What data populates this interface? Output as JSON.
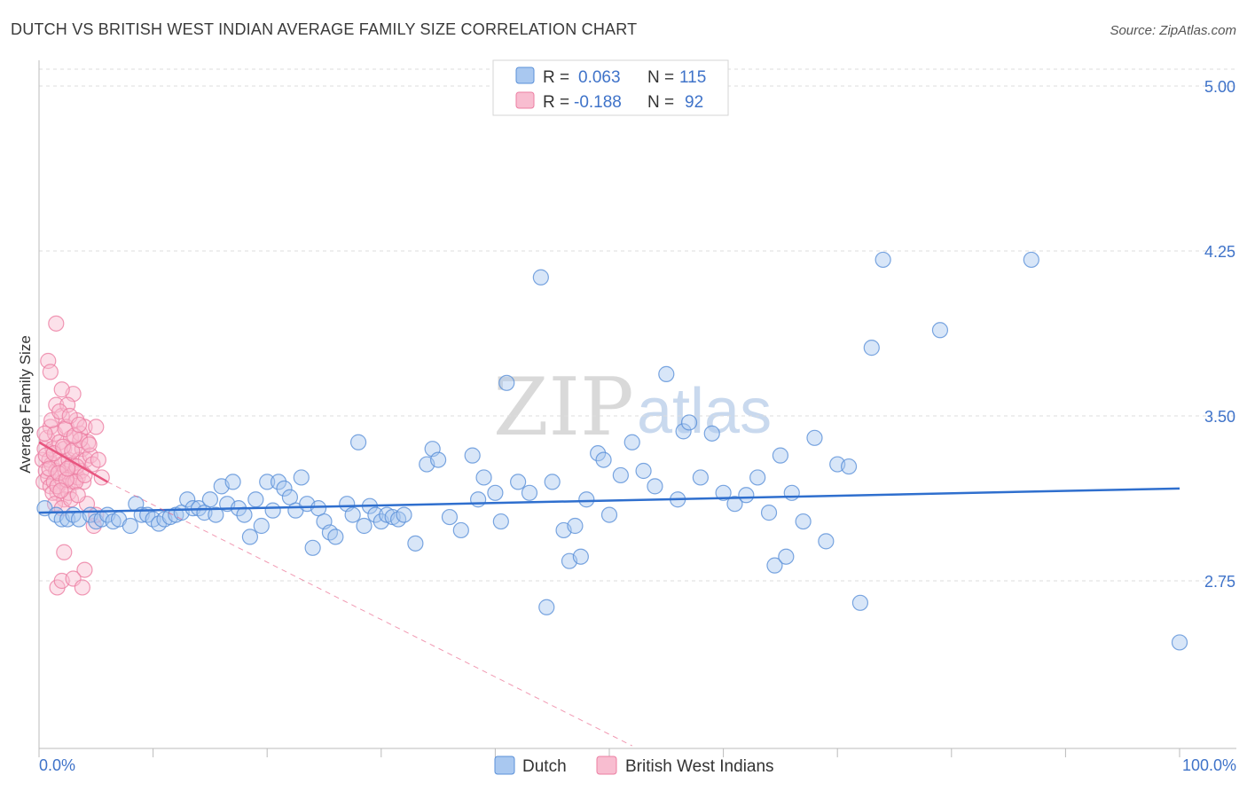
{
  "chart_data": {
    "type": "scatter",
    "title": "DUTCH VS BRITISH WEST INDIAN AVERAGE FAMILY SIZE CORRELATION CHART",
    "source": "Source: ZipAtlas.com",
    "ylabel": "Average Family Size",
    "xlabel": "",
    "x_range": [
      0,
      100
    ],
    "y_range": [
      2.0,
      5.1
    ],
    "x_tick_labels": [
      "0.0%",
      "100.0%"
    ],
    "y_ticks": [
      5.0,
      4.25,
      3.5,
      2.75
    ],
    "y_tick_labels": [
      "5.00",
      "4.25",
      "3.50",
      "2.75"
    ],
    "watermark": {
      "zip": "ZIP",
      "atlas": "atlas"
    },
    "legend_stats": [
      {
        "r_label": "R = ",
        "r_value": "0.063",
        "n_label": "N = ",
        "n_value": "115"
      },
      {
        "r_label": "R = ",
        "r_value": "-0.188",
        "n_label": "N = ",
        "n_value": "92"
      }
    ],
    "colors": {
      "dutch_fill": "#a9c8f0",
      "dutch_stroke": "#5a90d8",
      "dutch_line": "#2f6fce",
      "bwi_fill": "#f8bdd0",
      "bwi_stroke": "#ec7ea2",
      "bwi_line": "#e8557f",
      "grid": "#dddddd",
      "axis": "#bbbbbb"
    },
    "series": [
      {
        "name": "Dutch",
        "trend": {
          "x": [
            0,
            100
          ],
          "y": [
            3.06,
            3.17
          ],
          "dashed_extension": false
        },
        "points": [
          [
            0.5,
            3.08
          ],
          [
            1.5,
            3.05
          ],
          [
            2,
            3.03
          ],
          [
            2.5,
            3.03
          ],
          [
            3,
            3.05
          ],
          [
            3.5,
            3.03
          ],
          [
            4.5,
            3.05
          ],
          [
            5,
            3.02
          ],
          [
            5.5,
            3.03
          ],
          [
            6,
            3.05
          ],
          [
            6.5,
            3.02
          ],
          [
            7,
            3.03
          ],
          [
            8,
            3.0
          ],
          [
            8.5,
            3.1
          ],
          [
            9,
            3.05
          ],
          [
            9.5,
            3.05
          ],
          [
            10,
            3.03
          ],
          [
            10.5,
            3.01
          ],
          [
            11,
            3.03
          ],
          [
            11.5,
            3.04
          ],
          [
            12,
            3.05
          ],
          [
            12.5,
            3.06
          ],
          [
            13,
            3.12
          ],
          [
            13.5,
            3.08
          ],
          [
            14,
            3.08
          ],
          [
            14.5,
            3.06
          ],
          [
            15,
            3.12
          ],
          [
            15.5,
            3.05
          ],
          [
            16,
            3.18
          ],
          [
            16.5,
            3.1
          ],
          [
            17,
            3.2
          ],
          [
            17.5,
            3.08
          ],
          [
            18,
            3.05
          ],
          [
            18.5,
            2.95
          ],
          [
            19,
            3.12
          ],
          [
            19.5,
            3.0
          ],
          [
            20,
            3.2
          ],
          [
            20.5,
            3.07
          ],
          [
            21,
            3.2
          ],
          [
            21.5,
            3.17
          ],
          [
            22,
            3.13
          ],
          [
            22.5,
            3.07
          ],
          [
            23,
            3.22
          ],
          [
            23.5,
            3.1
          ],
          [
            24,
            2.9
          ],
          [
            24.5,
            3.08
          ],
          [
            25,
            3.02
          ],
          [
            25.5,
            2.97
          ],
          [
            26,
            2.95
          ],
          [
            27,
            3.1
          ],
          [
            27.5,
            3.05
          ],
          [
            28,
            3.38
          ],
          [
            28.5,
            3.0
          ],
          [
            29,
            3.09
          ],
          [
            29.5,
            3.05
          ],
          [
            30,
            3.02
          ],
          [
            30.5,
            3.05
          ],
          [
            31,
            3.04
          ],
          [
            31.5,
            3.03
          ],
          [
            32,
            3.05
          ],
          [
            33,
            2.92
          ],
          [
            34,
            3.28
          ],
          [
            34.5,
            3.35
          ],
          [
            35,
            3.3
          ],
          [
            36,
            3.04
          ],
          [
            37,
            2.98
          ],
          [
            38,
            3.32
          ],
          [
            38.5,
            3.12
          ],
          [
            39,
            3.22
          ],
          [
            40,
            3.15
          ],
          [
            40.5,
            3.02
          ],
          [
            41,
            3.65
          ],
          [
            42,
            3.2
          ],
          [
            43,
            3.15
          ],
          [
            44,
            4.13
          ],
          [
            44.5,
            2.63
          ],
          [
            45,
            3.2
          ],
          [
            46,
            2.98
          ],
          [
            46.5,
            2.84
          ],
          [
            47,
            3.0
          ],
          [
            47.5,
            2.86
          ],
          [
            48,
            3.12
          ],
          [
            49,
            3.33
          ],
          [
            49.5,
            3.3
          ],
          [
            50,
            3.05
          ],
          [
            51,
            3.23
          ],
          [
            52,
            3.38
          ],
          [
            53,
            3.25
          ],
          [
            54,
            3.18
          ],
          [
            55,
            3.69
          ],
          [
            56,
            3.12
          ],
          [
            56.5,
            3.43
          ],
          [
            57,
            3.47
          ],
          [
            58,
            3.22
          ],
          [
            59,
            3.42
          ],
          [
            60,
            3.15
          ],
          [
            61,
            3.1
          ],
          [
            62,
            3.14
          ],
          [
            63,
            3.22
          ],
          [
            64,
            3.06
          ],
          [
            64.5,
            2.82
          ],
          [
            65,
            3.32
          ],
          [
            65.5,
            2.86
          ],
          [
            66,
            3.15
          ],
          [
            67,
            3.02
          ],
          [
            68,
            3.4
          ],
          [
            69,
            2.93
          ],
          [
            70,
            3.28
          ],
          [
            71,
            3.27
          ],
          [
            72,
            2.65
          ],
          [
            73,
            3.81
          ],
          [
            74,
            4.21
          ],
          [
            79,
            3.89
          ],
          [
            87,
            4.21
          ],
          [
            100,
            2.47
          ]
        ]
      },
      {
        "name": "British West Indians",
        "trend": {
          "x": [
            0,
            6
          ],
          "y": [
            3.38,
            3.2
          ],
          "dashed_extension": true,
          "dash_to": [
            52,
            2.0
          ]
        },
        "points": [
          [
            0.3,
            3.3
          ],
          [
            0.4,
            3.2
          ],
          [
            0.5,
            3.35
          ],
          [
            0.6,
            3.25
          ],
          [
            0.7,
            3.4
          ],
          [
            0.8,
            3.22
          ],
          [
            0.9,
            3.3
          ],
          [
            1.0,
            3.45
          ],
          [
            1.0,
            3.18
          ],
          [
            1.1,
            3.28
          ],
          [
            1.2,
            3.35
          ],
          [
            1.3,
            3.2
          ],
          [
            1.4,
            3.42
          ],
          [
            1.5,
            3.25
          ],
          [
            1.5,
            3.55
          ],
          [
            1.6,
            3.15
          ],
          [
            1.7,
            3.3
          ],
          [
            1.8,
            3.38
          ],
          [
            1.9,
            3.22
          ],
          [
            2.0,
            3.5
          ],
          [
            2.0,
            3.28
          ],
          [
            2.1,
            3.2
          ],
          [
            2.2,
            3.35
          ],
          [
            2.3,
            3.25
          ],
          [
            2.4,
            3.45
          ],
          [
            2.5,
            3.18
          ],
          [
            2.6,
            3.3
          ],
          [
            2.7,
            3.22
          ],
          [
            2.8,
            3.4
          ],
          [
            2.9,
            3.28
          ],
          [
            3.0,
            3.6
          ],
          [
            3.0,
            3.2
          ],
          [
            3.1,
            3.35
          ],
          [
            3.2,
            3.25
          ],
          [
            3.3,
            3.48
          ],
          [
            3.4,
            3.22
          ],
          [
            3.5,
            3.3
          ],
          [
            3.6,
            3.42
          ],
          [
            3.7,
            3.25
          ],
          [
            3.8,
            3.35
          ],
          [
            3.9,
            3.2
          ],
          [
            4.0,
            3.45
          ],
          [
            4.1,
            3.3
          ],
          [
            4.2,
            3.1
          ],
          [
            4.3,
            3.38
          ],
          [
            4.5,
            3.32
          ],
          [
            4.7,
            3.28
          ],
          [
            5.0,
            3.45
          ],
          [
            5.2,
            3.3
          ],
          [
            5.5,
            3.22
          ],
          [
            0.8,
            3.75
          ],
          [
            1.0,
            3.7
          ],
          [
            1.5,
            3.92
          ],
          [
            2.0,
            3.62
          ],
          [
            2.5,
            3.55
          ],
          [
            1.2,
            3.15
          ],
          [
            1.6,
            3.18
          ],
          [
            2.2,
            3.12
          ],
          [
            2.6,
            3.15
          ],
          [
            3.2,
            3.2
          ],
          [
            0.6,
            3.32
          ],
          [
            0.9,
            3.26
          ],
          [
            1.3,
            3.33
          ],
          [
            1.7,
            3.24
          ],
          [
            2.1,
            3.36
          ],
          [
            2.4,
            3.21
          ],
          [
            2.9,
            3.34
          ],
          [
            3.3,
            3.27
          ],
          [
            3.6,
            3.39
          ],
          [
            4.0,
            3.23
          ],
          [
            0.5,
            3.42
          ],
          [
            1.1,
            3.48
          ],
          [
            1.8,
            3.52
          ],
          [
            2.3,
            3.44
          ],
          [
            2.7,
            3.5
          ],
          [
            3.1,
            3.41
          ],
          [
            3.5,
            3.46
          ],
          [
            4.4,
            3.37
          ],
          [
            4.8,
            3.0
          ],
          [
            5.0,
            3.05
          ],
          [
            1.4,
            3.1
          ],
          [
            2.0,
            3.08
          ],
          [
            2.8,
            3.12
          ],
          [
            3.4,
            3.14
          ],
          [
            4.0,
            2.8
          ],
          [
            2.2,
            2.88
          ],
          [
            1.6,
            2.72
          ],
          [
            2.0,
            2.75
          ],
          [
            3.0,
            2.76
          ],
          [
            3.8,
            2.72
          ],
          [
            1.9,
            3.16
          ],
          [
            2.5,
            3.26
          ]
        ]
      }
    ],
    "legend": [
      "Dutch",
      "British West Indians"
    ]
  }
}
